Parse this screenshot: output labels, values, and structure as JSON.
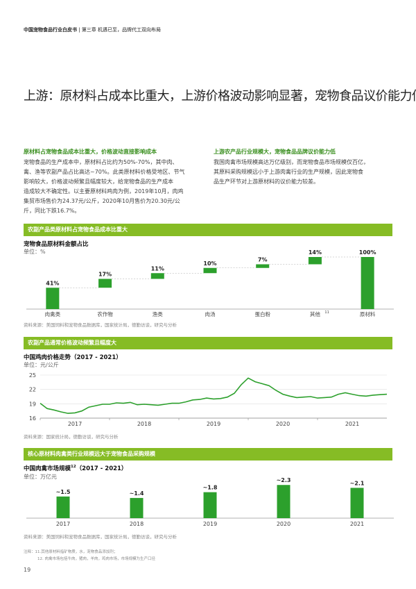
{
  "header": {
    "report": "中国宠物食品行业白皮书",
    "chapter": "第三章 机遇已至，品牌代工双向布局"
  },
  "main_title": "上游：原材料占成本比重大，上游价格波动影响显著，宠物食品议价能力低",
  "left": {
    "subhead": "原材料占宠物食品成本比重大，价格波动直接影响成本",
    "lines": [
      "宠物食品的生产成本中，原材料占比约为50%-70%，其中肉、",
      "禽、渔等农副产品占比高达~70%。此类原材料价格受地区、节气",
      "影响较大，价格波动频繁且幅度较大，给宠物食品的生产成本",
      "造成较大不确定性。以主要原材料鸡肉为例，2019年10月，肉鸡",
      "集贸市场售价为24.37元/公斤，2020年10月售价为20.30元/公",
      "斤，同比下跌16.7%。"
    ]
  },
  "right": {
    "subhead": "上游农产品行业规模大，宠物食品品牌议价能力低",
    "lines": [
      "我国肉禽市场规模高达万亿级别，而宠物食品市场规模仅百亿，",
      "其原料采购规模远小于上游肉禽行业的生产规模，因此宠物食",
      "品生产环节对上游原材料的议价能力较差。"
    ]
  },
  "section1": {
    "bar": "农副产品类原材料占宠物食品成本比重大",
    "title": "宠物食品原材料金额占比",
    "unit": "单位：%",
    "source": "资料来源：美国饲料和宠物食品数据库，国家统计局，德勤访谈，研究与分析"
  },
  "section2": {
    "bar": "农副产品通常价格波动频繁且幅度大",
    "title": "中国鸡肉价格走势（2017 - 2021）",
    "unit": "单位：元/公斤",
    "source": "资料来源：国家统计局，德勤访谈，研究与分析"
  },
  "section3": {
    "bar": "核心原材料肉禽类行业规模远大于宠物食品采购规模",
    "title": "中国肉禽市场规模",
    "title_sup": "12",
    "title_suffix": "（2017 - 2021）",
    "unit": "单位：万亿元",
    "source": "资料来源：美国饲料和宠物食品数据库，国家统计局，德勤访谈，研究与分析"
  },
  "notes": [
    "注释：11.其他原材料指矿物质，水，宠物食品添加剂；",
    "12. 肉禽市场包括牛肉，猪肉，羊肉，鸡肉市场，市场规模为生产口径"
  ],
  "page_number": "19",
  "colors": {
    "green": "#86bc25",
    "dark_green": "#26890d",
    "bar_green": "#2ca02c"
  },
  "chart_data": [
    {
      "type": "bar",
      "subtype": "waterfall",
      "categories": [
        "肉禽类",
        "农作物",
        "渔类",
        "肉汤",
        "蛋白粉",
        "其他",
        "原材料"
      ],
      "category_sup": [
        "",
        "",
        "",
        "",
        "",
        "11",
        ""
      ],
      "values": [
        41,
        17,
        11,
        10,
        7,
        14,
        100
      ],
      "labels": [
        "41%",
        "17%",
        "11%",
        "10%",
        "7%",
        "14%",
        "100%"
      ],
      "ylim": [
        0,
        100
      ]
    },
    {
      "type": "line",
      "x_ticks": [
        "2017",
        "2018",
        "2019",
        "2020",
        "2021"
      ],
      "y_ticks": [
        16,
        19,
        22,
        25
      ],
      "ylim": [
        16,
        25
      ],
      "series": [
        {
          "values": [
            19.1,
            18.0,
            17.7,
            17.3,
            17.0,
            17.1,
            17.5,
            18.3,
            18.6,
            18.9,
            18.9,
            19.2,
            19.1,
            19.3,
            18.8,
            18.9,
            18.8,
            18.7,
            18.9,
            19.1,
            19.1,
            19.4,
            19.8,
            19.9,
            20.2,
            20.0,
            20.1,
            20.4,
            21.2,
            23.0,
            24.37,
            23.6,
            23.2,
            22.8,
            21.8,
            21.0,
            20.6,
            20.3,
            20.4,
            20.5,
            20.2,
            20.3,
            20.4,
            21.0,
            21.3,
            21.0,
            20.7,
            20.6,
            20.8,
            20.9,
            21.0
          ]
        }
      ]
    },
    {
      "type": "bar",
      "categories": [
        "2017",
        "2018",
        "2019",
        "2020",
        "2021"
      ],
      "values": [
        1.5,
        1.4,
        1.8,
        2.3,
        2.1
      ],
      "labels": [
        "~1.5",
        "~1.4",
        "~1.8",
        "~2.3",
        "~2.1"
      ],
      "ylim": [
        0,
        2.6
      ]
    }
  ]
}
